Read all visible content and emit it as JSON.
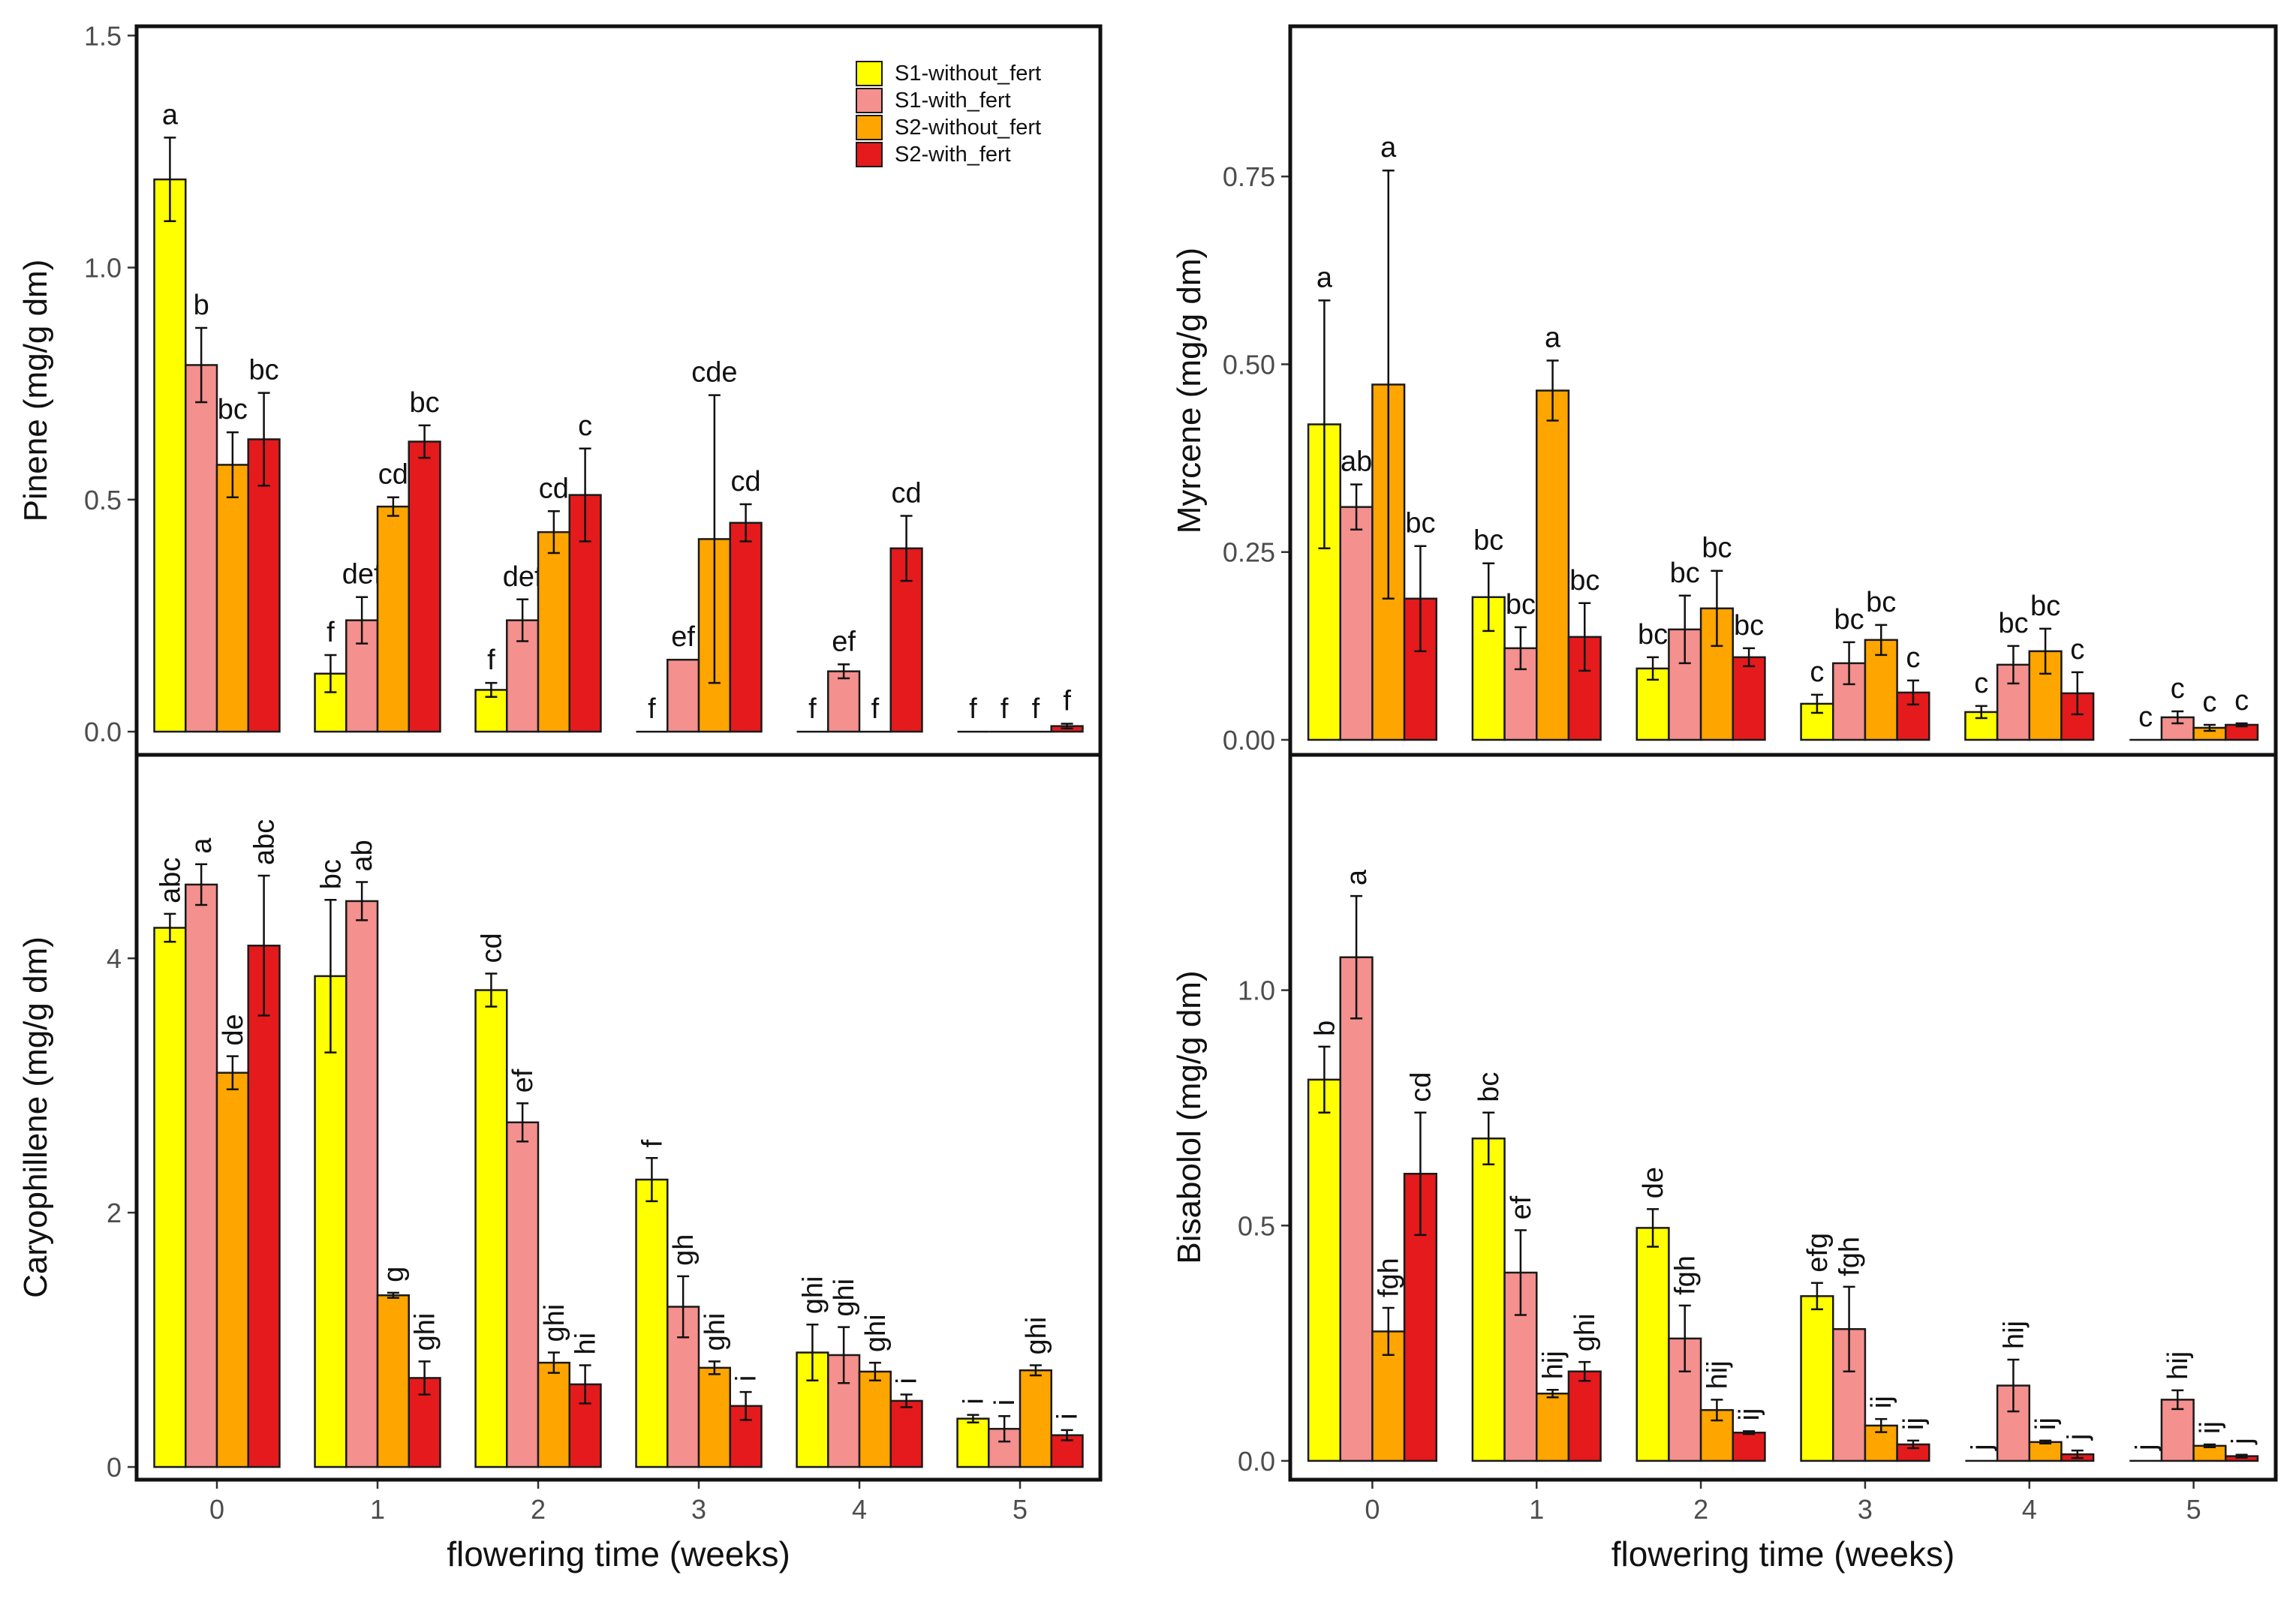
{
  "colors": {
    "s1_without": "#ffff00",
    "s1_with": "#f4908d",
    "s2_without": "#ffa500",
    "s2_with": "#e41a1c"
  },
  "legend": {
    "items": [
      {
        "label": "S1-without_fert",
        "color": "#ffff00"
      },
      {
        "label": "S1-with_fert",
        "color": "#f4908d"
      },
      {
        "label": "S2-without_fert",
        "color": "#ffa500"
      },
      {
        "label": "S2-with_fert",
        "color": "#e41a1c"
      }
    ]
  },
  "chart_data": [
    {
      "type": "bar",
      "panel": "top-left",
      "title": "",
      "xlabel": "",
      "ylabel": "Pinene (mg/g dm)",
      "categories": [
        "0",
        "1",
        "2",
        "3",
        "4",
        "5"
      ],
      "show_x_ticks": false,
      "ylim": [
        -0.05,
        1.52
      ],
      "yticks": [
        {
          "v": 0,
          "label": "0.0"
        },
        {
          "v": 0.5,
          "label": "0.5"
        },
        {
          "v": 1.0,
          "label": "1.0"
        },
        {
          "v": 1.5,
          "label": "1.5"
        }
      ],
      "label_rotation": 0,
      "legend": "top-right",
      "series": [
        {
          "name": "S1-without_fert",
          "values": [
            1.19,
            0.125,
            0.09,
            0.0,
            0.0,
            0.0
          ],
          "errors": [
            0.09,
            0.04,
            0.015,
            0,
            0,
            0
          ],
          "labels": [
            "a",
            "f",
            "f",
            "f",
            "f",
            "f"
          ]
        },
        {
          "name": "S1-with_fert",
          "values": [
            0.79,
            0.24,
            0.24,
            0.155,
            0.13,
            0.0
          ],
          "errors": [
            0.08,
            0.05,
            0.045,
            0,
            0.015,
            0
          ],
          "labels": [
            "b",
            "def",
            "def",
            "ef",
            "ef",
            "f"
          ]
        },
        {
          "name": "S2-without_fert",
          "values": [
            0.575,
            0.485,
            0.43,
            0.415,
            0.0,
            0.0
          ],
          "errors": [
            0.07,
            0.02,
            0.045,
            0.31,
            0,
            0
          ],
          "labels": [
            "bc",
            "cd",
            "cd",
            "cde",
            "f",
            "f"
          ]
        },
        {
          "name": "S2-with_fert",
          "values": [
            0.63,
            0.625,
            0.51,
            0.45,
            0.395,
            0.012
          ],
          "errors": [
            0.1,
            0.035,
            0.1,
            0.04,
            0.07,
            0.005
          ],
          "labels": [
            "bc",
            "bc",
            "c",
            "cd",
            "cd",
            "f"
          ]
        }
      ]
    },
    {
      "type": "bar",
      "panel": "top-right",
      "title": "",
      "xlabel": "",
      "ylabel": "Myrcene (mg/g dm)",
      "categories": [
        "0",
        "1",
        "2",
        "3",
        "4",
        "5"
      ],
      "show_x_ticks": false,
      "ylim": [
        -0.02,
        0.95
      ],
      "yticks": [
        {
          "v": 0,
          "label": "0.00"
        },
        {
          "v": 0.25,
          "label": "0.25"
        },
        {
          "v": 0.5,
          "label": "0.50"
        },
        {
          "v": 0.75,
          "label": "0.75"
        }
      ],
      "label_rotation": 0,
      "series": [
        {
          "name": "S1-without_fert",
          "values": [
            0.42,
            0.19,
            0.095,
            0.048,
            0.037,
            0.0
          ],
          "errors": [
            0.165,
            0.045,
            0.015,
            0.012,
            0.008,
            0
          ],
          "labels": [
            "a",
            "bc",
            "bc",
            "c",
            "c",
            "c"
          ]
        },
        {
          "name": "S1-with_fert",
          "values": [
            0.31,
            0.122,
            0.147,
            0.102,
            0.1,
            0.03
          ],
          "errors": [
            0.03,
            0.028,
            0.045,
            0.028,
            0.025,
            0.008
          ],
          "labels": [
            "ab",
            "bc",
            "bc",
            "bc",
            "bc",
            "c"
          ]
        },
        {
          "name": "S2-without_fert",
          "values": [
            0.473,
            0.465,
            0.175,
            0.133,
            0.118,
            0.016
          ],
          "errors": [
            0.285,
            0.04,
            0.05,
            0.02,
            0.03,
            0.004
          ],
          "labels": [
            "a",
            "a",
            "bc",
            "bc",
            "bc",
            "c"
          ]
        },
        {
          "name": "S2-with_fert",
          "values": [
            0.188,
            0.137,
            0.11,
            0.063,
            0.062,
            0.02
          ],
          "errors": [
            0.07,
            0.045,
            0.012,
            0.016,
            0.028,
            0.002
          ],
          "labels": [
            "bc",
            "bc",
            "bc",
            "c",
            "c",
            "c"
          ]
        }
      ]
    },
    {
      "type": "bar",
      "panel": "bottom-left",
      "title": "",
      "xlabel": "flowering time (weeks)",
      "ylabel": "Caryophillene (mg/g dm)",
      "categories": [
        "0",
        "1",
        "2",
        "3",
        "4",
        "5"
      ],
      "show_x_ticks": true,
      "ylim": [
        -0.1,
        5.6
      ],
      "yticks": [
        {
          "v": 0,
          "label": "0"
        },
        {
          "v": 2,
          "label": "2"
        },
        {
          "v": 4,
          "label": "4"
        }
      ],
      "label_rotation": -90,
      "series": [
        {
          "name": "S1-without_fert",
          "values": [
            4.24,
            3.86,
            3.75,
            2.26,
            0.9,
            0.38
          ],
          "errors": [
            0.11,
            0.6,
            0.13,
            0.17,
            0.22,
            0.03
          ],
          "labels": [
            "abc",
            "bc",
            "cd",
            "f",
            "ghi",
            "i"
          ]
        },
        {
          "name": "S1-with_fert",
          "values": [
            4.58,
            4.45,
            2.71,
            1.26,
            0.88,
            0.3
          ],
          "errors": [
            0.16,
            0.15,
            0.15,
            0.24,
            0.22,
            0.1
          ],
          "labels": [
            "a",
            "ab",
            "ef",
            "gh",
            "ghi",
            "i"
          ]
        },
        {
          "name": "S2-without_fert",
          "values": [
            3.1,
            1.35,
            0.82,
            0.78,
            0.75,
            0.76
          ],
          "errors": [
            0.13,
            0.02,
            0.08,
            0.05,
            0.07,
            0.04
          ],
          "labels": [
            "de",
            "g",
            "ghi",
            "ghi",
            "ghi",
            "ghi"
          ]
        },
        {
          "name": "S2-with_fert",
          "values": [
            4.1,
            0.7,
            0.65,
            0.48,
            0.52,
            0.25
          ],
          "errors": [
            0.55,
            0.13,
            0.15,
            0.11,
            0.05,
            0.04
          ],
          "labels": [
            "abc",
            "ghi",
            "hi",
            "i",
            "i",
            "i"
          ]
        }
      ]
    },
    {
      "type": "bar",
      "panel": "bottom-right",
      "title": "",
      "xlabel": "flowering time (weeks)",
      "ylabel": "Bisabolol (mg/g dm)",
      "categories": [
        "0",
        "1",
        "2",
        "3",
        "4",
        "5"
      ],
      "show_x_ticks": true,
      "ylim": [
        -0.04,
        1.5
      ],
      "yticks": [
        {
          "v": 0,
          "label": "0.0"
        },
        {
          "v": 0.5,
          "label": "0.5"
        },
        {
          "v": 1.0,
          "label": "1.0"
        }
      ],
      "label_rotation": -90,
      "series": [
        {
          "name": "S1-without_fert",
          "values": [
            0.81,
            0.685,
            0.495,
            0.35,
            0.0,
            0.0
          ],
          "errors": [
            0.07,
            0.055,
            0.04,
            0.028,
            0,
            0
          ],
          "labels": [
            "b",
            "bc",
            "de",
            "efg",
            "j",
            "j"
          ]
        },
        {
          "name": "S1-with_fert",
          "values": [
            1.07,
            0.4,
            0.26,
            0.28,
            0.16,
            0.13
          ],
          "errors": [
            0.13,
            0.09,
            0.07,
            0.09,
            0.055,
            0.02
          ],
          "labels": [
            "a",
            "ef",
            "fgh",
            "fgh",
            "hij",
            "hij"
          ]
        },
        {
          "name": "S2-without_fert",
          "values": [
            0.275,
            0.143,
            0.108,
            0.075,
            0.04,
            0.032
          ],
          "errors": [
            0.05,
            0.008,
            0.022,
            0.014,
            0.003,
            0.003
          ],
          "labels": [
            "fgh",
            "hij",
            "hij",
            "ij",
            "ij",
            "ij"
          ]
        },
        {
          "name": "S2-with_fert",
          "values": [
            0.61,
            0.19,
            0.06,
            0.035,
            0.014,
            0.01
          ],
          "errors": [
            0.13,
            0.02,
            0.003,
            0.008,
            0.008,
            0.003
          ],
          "labels": [
            "cd",
            "ghi",
            "ij",
            "ij",
            "j",
            "j"
          ]
        }
      ]
    }
  ]
}
